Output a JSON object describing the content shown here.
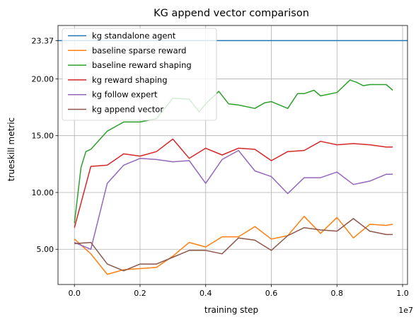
{
  "chart_data": {
    "type": "line",
    "title": "KG append vector comparison",
    "xlabel": "training step",
    "ylabel": "trueskill metric",
    "x_offset_label": "1e7",
    "xlim": [
      -0.05,
      1.015
    ],
    "ylim": [
      1.9,
      24.7
    ],
    "xticks": [
      0.0,
      0.2,
      0.4,
      0.6,
      0.8,
      1.0
    ],
    "xtick_labels": [
      "0.0",
      "0.2",
      "0.4",
      "0.6",
      "0.8",
      "1.0"
    ],
    "yticks": [
      5.0,
      10.0,
      15.0,
      20.0,
      23.37
    ],
    "ytick_labels": [
      "5.00",
      "10.00",
      "15.00",
      "20.00",
      "23.37"
    ],
    "grid": true,
    "legend_position": "top-left",
    "series": [
      {
        "name": "kg standalone agent",
        "color": "#1f77b4",
        "style": "hline",
        "y": 23.37
      },
      {
        "name": "baseline sparse reward",
        "color": "#ff7f0e",
        "x": [
          0.0,
          0.05,
          0.1,
          0.15,
          0.2,
          0.25,
          0.3,
          0.35,
          0.4,
          0.45,
          0.5,
          0.55,
          0.6,
          0.65,
          0.7,
          0.75,
          0.8,
          0.85,
          0.9,
          0.95,
          0.97
        ],
        "values": [
          5.9,
          4.6,
          2.8,
          3.2,
          3.3,
          3.4,
          4.4,
          5.6,
          5.2,
          6.1,
          6.1,
          7.0,
          5.9,
          6.2,
          7.9,
          6.4,
          7.8,
          6.0,
          7.2,
          7.1,
          7.2
        ]
      },
      {
        "name": "baseline reward shaping",
        "color": "#2ca02c",
        "x": [
          0.0,
          0.02,
          0.035,
          0.05,
          0.1,
          0.15,
          0.2,
          0.25,
          0.3,
          0.35,
          0.38,
          0.4,
          0.44,
          0.47,
          0.5,
          0.55,
          0.58,
          0.6,
          0.65,
          0.68,
          0.7,
          0.73,
          0.75,
          0.8,
          0.84,
          0.86,
          0.88,
          0.9,
          0.95,
          0.97
        ],
        "values": [
          7.3,
          12.2,
          13.6,
          13.8,
          15.4,
          16.2,
          16.2,
          16.5,
          18.3,
          18.2,
          17.1,
          17.8,
          18.9,
          17.8,
          17.7,
          17.4,
          17.9,
          18.0,
          17.4,
          18.7,
          18.7,
          19.0,
          18.5,
          18.8,
          19.9,
          19.7,
          19.4,
          19.5,
          19.5,
          19.0
        ]
      },
      {
        "name": "kg reward shaping",
        "color": "#d62728",
        "x": [
          0.0,
          0.05,
          0.1,
          0.15,
          0.2,
          0.25,
          0.3,
          0.35,
          0.4,
          0.45,
          0.5,
          0.55,
          0.6,
          0.65,
          0.7,
          0.75,
          0.8,
          0.85,
          0.9,
          0.95,
          0.97
        ],
        "values": [
          6.9,
          12.3,
          12.4,
          13.4,
          13.2,
          13.6,
          14.7,
          13.0,
          13.9,
          13.3,
          13.9,
          13.8,
          12.8,
          13.6,
          13.7,
          14.5,
          14.2,
          14.3,
          14.2,
          14.0,
          14.0
        ]
      },
      {
        "name": "kg follow expert",
        "color": "#9467bd",
        "x": [
          0.0,
          0.05,
          0.1,
          0.15,
          0.2,
          0.25,
          0.3,
          0.35,
          0.4,
          0.45,
          0.5,
          0.55,
          0.6,
          0.65,
          0.7,
          0.75,
          0.8,
          0.85,
          0.9,
          0.95,
          0.97
        ],
        "values": [
          5.6,
          5.0,
          10.8,
          12.4,
          13.0,
          12.9,
          12.7,
          12.8,
          10.8,
          12.9,
          13.7,
          11.9,
          11.4,
          9.9,
          11.3,
          11.3,
          11.8,
          10.7,
          11.0,
          11.6,
          11.6
        ]
      },
      {
        "name": "kg append vector",
        "color": "#8c564b",
        "x": [
          0.0,
          0.05,
          0.1,
          0.15,
          0.2,
          0.25,
          0.3,
          0.35,
          0.4,
          0.45,
          0.5,
          0.55,
          0.6,
          0.65,
          0.7,
          0.75,
          0.8,
          0.85,
          0.9,
          0.95,
          0.97
        ],
        "values": [
          5.5,
          5.6,
          3.7,
          3.1,
          3.7,
          3.7,
          4.3,
          4.9,
          4.9,
          4.6,
          6.0,
          5.8,
          4.9,
          6.2,
          6.9,
          6.7,
          6.6,
          7.7,
          6.6,
          6.3,
          6.3
        ]
      }
    ]
  }
}
